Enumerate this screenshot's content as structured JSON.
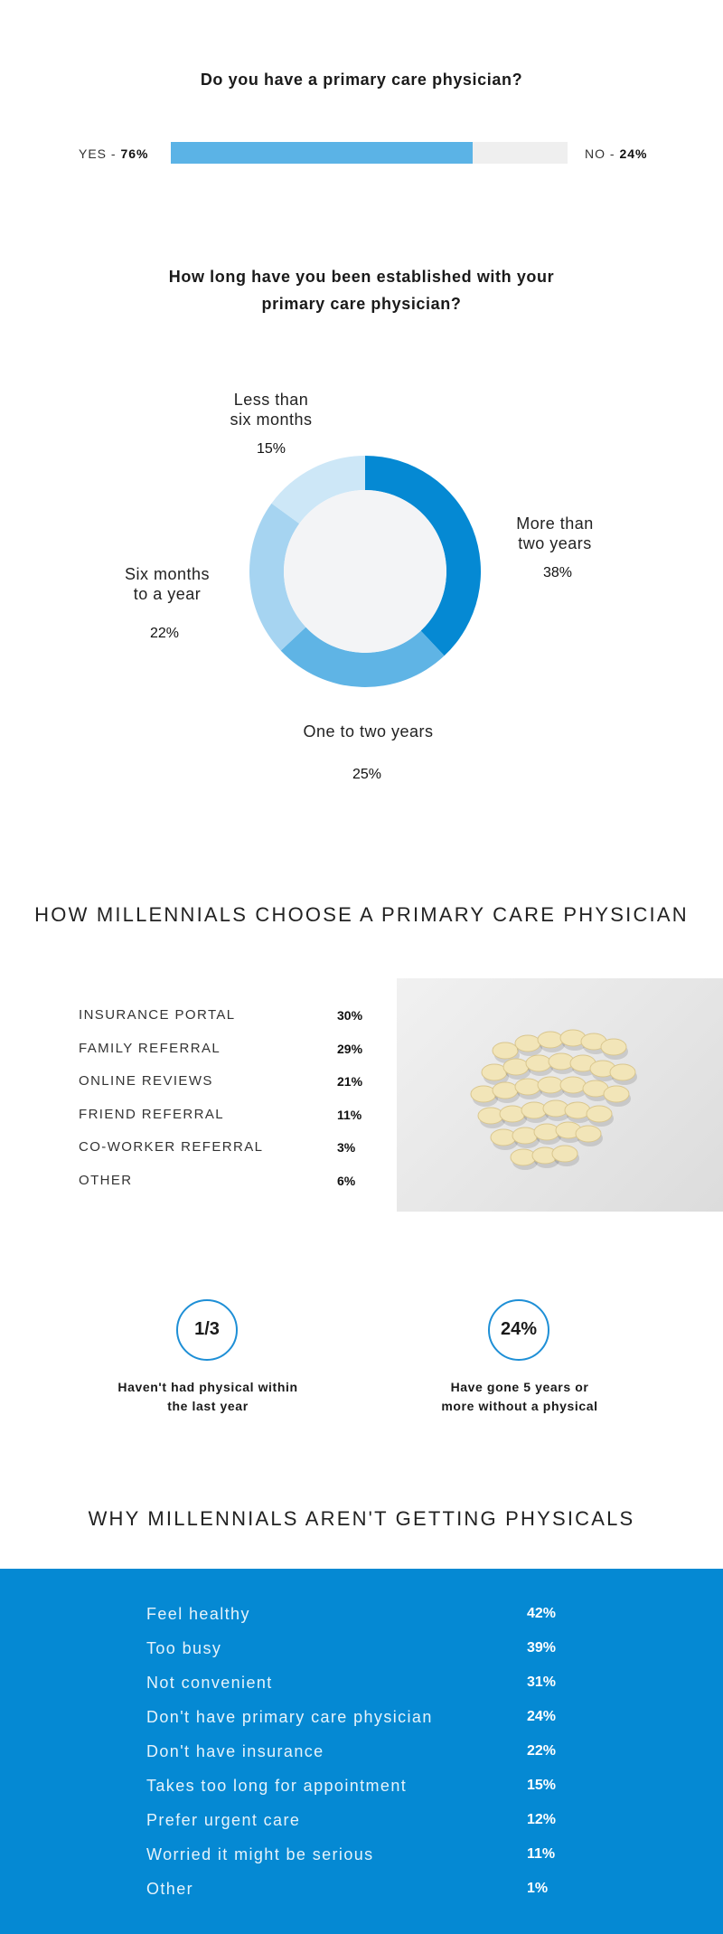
{
  "pcp_question": {
    "title": "Do you have a primary care physician?",
    "yes_label": "YES - ",
    "yes_value": "76%",
    "no_label": "NO - ",
    "no_value": "24%",
    "yes_fraction": 0.76
  },
  "tenure_question": {
    "title_line1": "How long have you been established with your",
    "title_line2": "primary care physician?"
  },
  "chart_data": [
    {
      "type": "pie",
      "title": "How long have you been established with your primary care physician?",
      "slices": [
        {
          "label": "More than\ntwo years",
          "value": 38,
          "display": "38%",
          "color": "#0589d3"
        },
        {
          "label": "One to two years",
          "value": 25,
          "display": "25%",
          "color": "#5fb4e5"
        },
        {
          "label": "Six months\nto a year",
          "value": 22,
          "display": "22%",
          "color": "#a6d4f1"
        },
        {
          "label": "Less than\nsix months",
          "value": 15,
          "display": "15%",
          "color": "#cde7f7"
        }
      ]
    },
    {
      "type": "table",
      "title": "HOW MILLENNIALS CHOOSE A PRIMARY CARE PHYSICIAN",
      "rows": [
        {
          "label": "INSURANCE PORTAL",
          "value": "30%"
        },
        {
          "label": "FAMILY REFERRAL",
          "value": "29%"
        },
        {
          "label": "ONLINE REVIEWS",
          "value": "21%"
        },
        {
          "label": "FRIEND REFERRAL",
          "value": "11%"
        },
        {
          "label": "CO-WORKER REFERRAL",
          "value": "3%"
        },
        {
          "label": "OTHER",
          "value": "6%"
        }
      ]
    },
    {
      "type": "table",
      "title": "WHY MILLENNIALS AREN'T GETTING PHYSICALS",
      "rows": [
        {
          "label": "Feel healthy",
          "value": "42%"
        },
        {
          "label": "Too busy",
          "value": "39%"
        },
        {
          "label": "Not convenient",
          "value": "31%"
        },
        {
          "label": "Don't have primary care physician",
          "value": "24%"
        },
        {
          "label": "Don't have insurance",
          "value": "22%"
        },
        {
          "label": "Takes too long for appointment",
          "value": "15%"
        },
        {
          "label": "Prefer urgent care",
          "value": "12%"
        },
        {
          "label": "Worried it might be serious",
          "value": "11%"
        },
        {
          "label": "Other",
          "value": "1%"
        }
      ]
    }
  ],
  "stats": [
    {
      "value": "1/3",
      "text": "Haven't had physical within\nthe last year"
    },
    {
      "value": "24%",
      "text": "Have gone 5 years or\nmore without a physical"
    }
  ],
  "colors": {
    "accent_blue": "#0589d3",
    "bar_fill": "#5bb3e6",
    "bar_track": "#efefef",
    "donut_center": "#f3f4f6"
  }
}
